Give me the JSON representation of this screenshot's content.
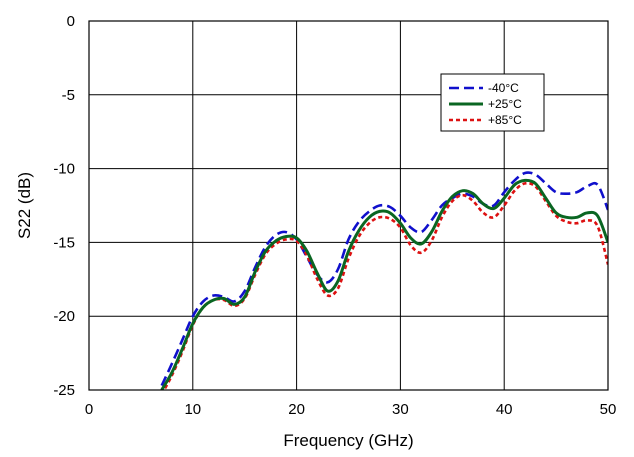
{
  "chart_data": {
    "type": "line",
    "title": "",
    "xlabel": "Frequency (GHz)",
    "ylabel": "S22 (dB)",
    "xlim": [
      0,
      50
    ],
    "ylim": [
      -25,
      0
    ],
    "x_ticks": [
      0,
      10,
      20,
      30,
      40,
      50
    ],
    "y_ticks": [
      0,
      -5,
      -10,
      -15,
      -20,
      -25
    ],
    "x_tick_labels": [
      "0",
      "10",
      "20",
      "30",
      "40",
      "50"
    ],
    "y_tick_labels": [
      "0",
      "-5",
      "-10",
      "-15",
      "-20",
      "-25"
    ],
    "grid": true,
    "legend_position": "top-right",
    "series": [
      {
        "name": "-40°C",
        "color": "#1010cc",
        "dash": "dash",
        "x": [
          7,
          8,
          9,
          10,
          11,
          12,
          13,
          14,
          15,
          16,
          17,
          18,
          19,
          20,
          21,
          22,
          23,
          24,
          25,
          26,
          27,
          28,
          29,
          30,
          31,
          32,
          33,
          34,
          35,
          36,
          37,
          38,
          39,
          40,
          41,
          42,
          43,
          44,
          45,
          46,
          47,
          48,
          49,
          50
        ],
        "values": [
          -24.7,
          -23.2,
          -21.6,
          -20.0,
          -19.0,
          -18.6,
          -18.7,
          -19.0,
          -18.3,
          -16.7,
          -15.3,
          -14.5,
          -14.3,
          -14.8,
          -16.0,
          -17.2,
          -17.7,
          -16.8,
          -14.8,
          -13.6,
          -12.9,
          -12.5,
          -12.6,
          -13.2,
          -14.0,
          -14.3,
          -13.5,
          -12.5,
          -12.0,
          -11.7,
          -11.9,
          -12.4,
          -12.5,
          -11.6,
          -10.8,
          -10.3,
          -10.4,
          -11.0,
          -11.6,
          -11.7,
          -11.6,
          -11.2,
          -11.1,
          -12.8
        ]
      },
      {
        "name": "+25°C",
        "color": "#0a6622",
        "dash": "solid",
        "x": [
          7,
          8,
          9,
          10,
          11,
          12,
          13,
          14,
          15,
          16,
          17,
          18,
          19,
          20,
          21,
          22,
          23,
          24,
          25,
          26,
          27,
          28,
          29,
          30,
          31,
          32,
          33,
          34,
          35,
          36,
          37,
          38,
          39,
          40,
          41,
          42,
          43,
          44,
          45,
          46,
          47,
          48,
          49,
          50
        ],
        "values": [
          -25.0,
          -23.8,
          -22.2,
          -20.5,
          -19.4,
          -18.9,
          -18.8,
          -19.2,
          -18.7,
          -17.0,
          -15.6,
          -14.9,
          -14.6,
          -14.7,
          -15.6,
          -17.1,
          -18.3,
          -17.6,
          -15.6,
          -14.2,
          -13.3,
          -12.9,
          -13.0,
          -13.7,
          -14.7,
          -15.1,
          -14.3,
          -12.9,
          -11.9,
          -11.5,
          -11.7,
          -12.4,
          -12.7,
          -12.0,
          -11.1,
          -10.8,
          -11.0,
          -12.0,
          -13.0,
          -13.3,
          -13.3,
          -13.0,
          -13.2,
          -15.0
        ]
      },
      {
        "name": "+85°C",
        "color": "#dd1111",
        "dash": "dot",
        "x": [
          7,
          8,
          9,
          10,
          11,
          12,
          13,
          14,
          15,
          16,
          17,
          18,
          19,
          20,
          21,
          22,
          23,
          24,
          25,
          26,
          27,
          28,
          29,
          30,
          31,
          32,
          33,
          34,
          35,
          36,
          37,
          38,
          39,
          40,
          41,
          42,
          43,
          44,
          45,
          46,
          47,
          48,
          49,
          50
        ],
        "values": [
          -25.3,
          -24.0,
          -22.4,
          -20.6,
          -19.4,
          -18.9,
          -18.9,
          -19.3,
          -18.8,
          -17.2,
          -15.8,
          -15.1,
          -14.8,
          -14.9,
          -15.9,
          -17.5,
          -18.6,
          -18.1,
          -16.1,
          -14.6,
          -13.7,
          -13.3,
          -13.4,
          -14.0,
          -15.2,
          -15.7,
          -14.9,
          -13.3,
          -12.2,
          -11.8,
          -12.2,
          -13.0,
          -13.3,
          -12.5,
          -11.5,
          -11.0,
          -11.2,
          -12.2,
          -13.2,
          -13.6,
          -13.7,
          -13.5,
          -13.9,
          -16.5
        ]
      }
    ]
  }
}
